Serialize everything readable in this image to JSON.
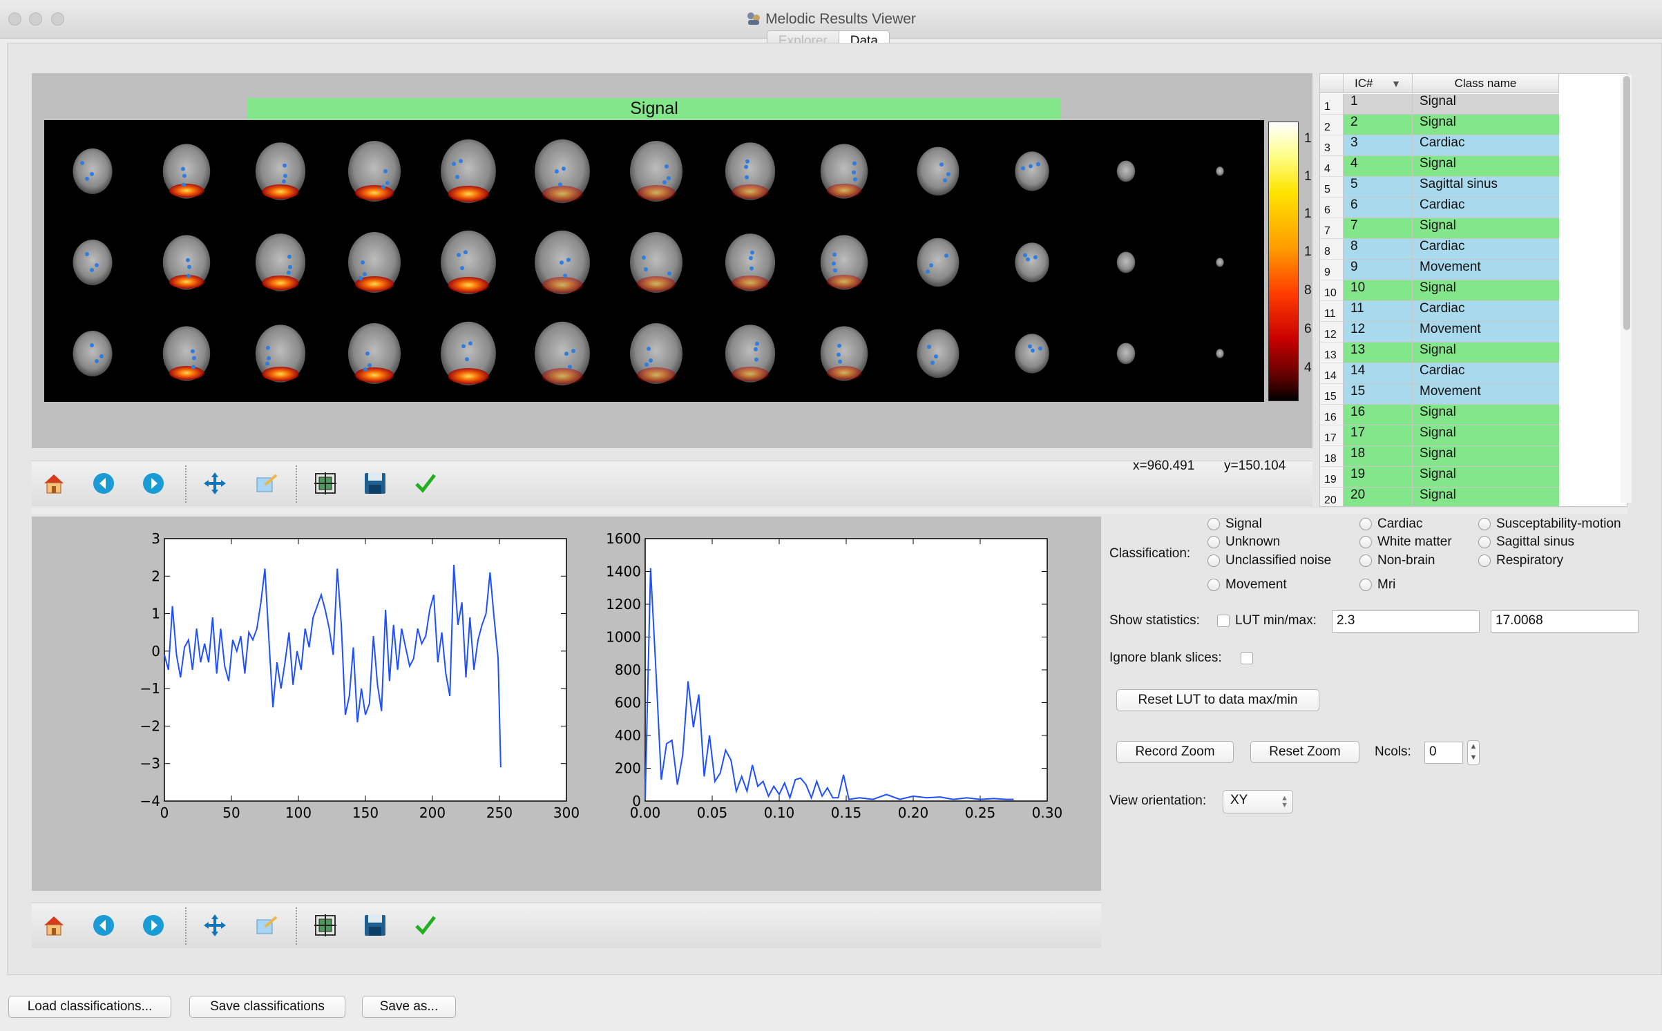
{
  "window": {
    "title": "Melodic Results Viewer",
    "tabs": [
      {
        "label": "Explorer",
        "active": false
      },
      {
        "label": "Data",
        "active": true
      }
    ]
  },
  "montage": {
    "banner": "Signal",
    "banner_color": "#83e68a",
    "colorbar_labels": [
      "1",
      "1",
      "1",
      "1",
      "8",
      "6",
      "4"
    ],
    "coords": {
      "x": "x=960.491",
      "y": "y=150.104"
    }
  },
  "toolbar_icons": [
    "home-icon",
    "back-arrow-icon",
    "forward-arrow-icon",
    "pan-icon",
    "zoom-icon",
    "configure-subplots-icon",
    "save-icon",
    "check-icon"
  ],
  "table": {
    "col_ic": "IC#",
    "col_class": "Class name",
    "sort_indicator": "▼",
    "rows": [
      {
        "n": "1",
        "ic": "1",
        "cls": "Signal",
        "color": "#d4d4d4"
      },
      {
        "n": "2",
        "ic": "2",
        "cls": "Signal",
        "color": "#83e68a"
      },
      {
        "n": "3",
        "ic": "3",
        "cls": "Cardiac",
        "color": "#a9d9ec"
      },
      {
        "n": "4",
        "ic": "4",
        "cls": "Signal",
        "color": "#83e68a"
      },
      {
        "n": "5",
        "ic": "5",
        "cls": "Sagittal sinus",
        "color": "#a9d9ec"
      },
      {
        "n": "6",
        "ic": "6",
        "cls": "Cardiac",
        "color": "#a9d9ec"
      },
      {
        "n": "7",
        "ic": "7",
        "cls": "Signal",
        "color": "#83e68a"
      },
      {
        "n": "8",
        "ic": "8",
        "cls": "Cardiac",
        "color": "#a9d9ec"
      },
      {
        "n": "9",
        "ic": "9",
        "cls": "Movement",
        "color": "#a9d9ec"
      },
      {
        "n": "10",
        "ic": "10",
        "cls": "Signal",
        "color": "#83e68a"
      },
      {
        "n": "11",
        "ic": "11",
        "cls": "Cardiac",
        "color": "#a9d9ec"
      },
      {
        "n": "12",
        "ic": "12",
        "cls": "Movement",
        "color": "#a9d9ec"
      },
      {
        "n": "13",
        "ic": "13",
        "cls": "Signal",
        "color": "#83e68a"
      },
      {
        "n": "14",
        "ic": "14",
        "cls": "Cardiac",
        "color": "#a9d9ec"
      },
      {
        "n": "15",
        "ic": "15",
        "cls": "Movement",
        "color": "#a9d9ec"
      },
      {
        "n": "16",
        "ic": "16",
        "cls": "Signal",
        "color": "#83e68a"
      },
      {
        "n": "17",
        "ic": "17",
        "cls": "Signal",
        "color": "#83e68a"
      },
      {
        "n": "18",
        "ic": "18",
        "cls": "Signal",
        "color": "#83e68a"
      },
      {
        "n": "19",
        "ic": "19",
        "cls": "Signal",
        "color": "#83e68a"
      },
      {
        "n": "20",
        "ic": "20",
        "cls": "Signal",
        "color": "#83e68a"
      }
    ]
  },
  "chart_data": [
    {
      "type": "line",
      "xlim": [
        0,
        300
      ],
      "ylim": [
        -4,
        3
      ],
      "xticks": [
        "0",
        "50",
        "100",
        "150",
        "200",
        "250",
        "300"
      ],
      "yticks": [
        "3",
        "2",
        "1",
        "0",
        "−1",
        "−2",
        "−3",
        "−4"
      ],
      "color": "#1f4fff",
      "x": [
        0,
        3,
        6,
        9,
        12,
        15,
        18,
        21,
        24,
        27,
        30,
        33,
        36,
        39,
        42,
        45,
        48,
        51,
        54,
        57,
        60,
        63,
        66,
        69,
        72,
        75,
        78,
        81,
        84,
        87,
        90,
        93,
        96,
        99,
        102,
        105,
        108,
        111,
        114,
        117,
        120,
        123,
        126,
        129,
        132,
        135,
        138,
        141,
        144,
        147,
        150,
        153,
        156,
        159,
        162,
        165,
        168,
        171,
        174,
        177,
        180,
        183,
        186,
        189,
        192,
        195,
        198,
        201,
        204,
        207,
        210,
        213,
        216,
        219,
        222,
        225,
        228,
        231,
        234,
        237,
        240,
        243,
        246,
        249,
        251
      ],
      "y": [
        -0.1,
        -0.5,
        1.2,
        -0.1,
        -0.7,
        0.1,
        0.3,
        -0.5,
        0.6,
        -0.3,
        0.2,
        -0.3,
        0.9,
        -0.6,
        0.6,
        -0.4,
        -0.8,
        0.3,
        0.0,
        0.4,
        -0.6,
        0.5,
        0.3,
        0.6,
        1.3,
        2.2,
        0.3,
        -1.5,
        -0.3,
        -1.0,
        -0.3,
        0.5,
        -0.9,
        0.0,
        -0.5,
        0.6,
        0.1,
        0.9,
        1.2,
        1.5,
        1.1,
        0.6,
        -0.1,
        2.2,
        0.7,
        -1.7,
        -1.2,
        0.1,
        -1.9,
        -1.0,
        -1.7,
        -1.4,
        0.4,
        -0.9,
        -1.6,
        1.1,
        -0.8,
        0.7,
        -0.5,
        0.6,
        0.1,
        -0.4,
        -0.2,
        0.6,
        0.2,
        0.4,
        1.1,
        1.5,
        -0.3,
        0.5,
        -0.6,
        -1.2,
        2.3,
        0.7,
        1.3,
        -0.7,
        0.9,
        -0.5,
        0.3,
        0.7,
        1.0,
        2.1,
        0.9,
        -0.2,
        -3.1
      ]
    },
    {
      "type": "line",
      "xlim": [
        0,
        0.3
      ],
      "ylim": [
        0,
        1600
      ],
      "xticks": [
        "0.00",
        "0.05",
        "0.10",
        "0.15",
        "0.20",
        "0.25",
        "0.30"
      ],
      "yticks": [
        "1600",
        "1400",
        "1200",
        "1000",
        "800",
        "600",
        "400",
        "200",
        "0"
      ],
      "color": "#1f4fff",
      "x": [
        0.0,
        0.004,
        0.008,
        0.012,
        0.016,
        0.02,
        0.024,
        0.028,
        0.032,
        0.036,
        0.04,
        0.044,
        0.048,
        0.052,
        0.056,
        0.06,
        0.064,
        0.068,
        0.072,
        0.076,
        0.08,
        0.084,
        0.088,
        0.092,
        0.096,
        0.1,
        0.104,
        0.108,
        0.112,
        0.116,
        0.12,
        0.124,
        0.128,
        0.132,
        0.136,
        0.14,
        0.144,
        0.148,
        0.152,
        0.156,
        0.16,
        0.17,
        0.18,
        0.19,
        0.2,
        0.21,
        0.22,
        0.23,
        0.24,
        0.25,
        0.26,
        0.27,
        0.275
      ],
      "y": [
        10,
        1420,
        800,
        130,
        350,
        370,
        100,
        280,
        730,
        450,
        650,
        150,
        400,
        120,
        170,
        310,
        250,
        60,
        150,
        60,
        220,
        90,
        120,
        30,
        90,
        40,
        110,
        20,
        130,
        140,
        100,
        20,
        120,
        30,
        80,
        20,
        20,
        160,
        10,
        15,
        20,
        10,
        40,
        10,
        30,
        20,
        25,
        10,
        20,
        10,
        15,
        10,
        10
      ]
    }
  ],
  "controls": {
    "classification_label": "Classification:",
    "radios": [
      "Signal",
      "Unknown",
      "Unclassified noise",
      "Movement",
      "Cardiac",
      "White matter",
      "Non-brain",
      "Mri",
      "Susceptability-motion",
      "Sagittal sinus",
      "Respiratory"
    ],
    "show_stats_label": "Show statistics:",
    "lut_label": "LUT min/max:",
    "lut_min": "2.3",
    "lut_max": "17.0068",
    "ignore_blank_label": "Ignore blank slices:",
    "reset_lut_button": "Reset LUT to data max/min",
    "record_zoom_button": "Record Zoom",
    "reset_zoom_button": "Reset Zoom",
    "ncols_label": "Ncols:",
    "ncols_value": "0",
    "view_orientation_label": "View orientation:",
    "view_orientation_value": "XY"
  },
  "footer": {
    "load_button": "Load classifications...",
    "save_button": "Save classifications",
    "save_as_button": "Save as..."
  }
}
